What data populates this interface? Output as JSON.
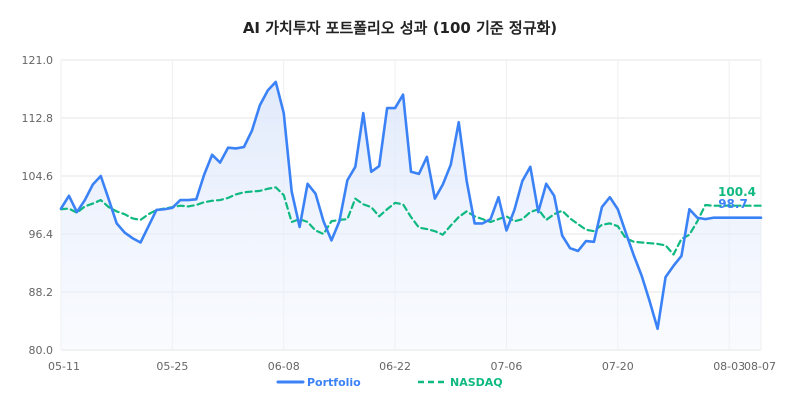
{
  "chart_data": {
    "type": "line",
    "title": "AI 가치투자 포트폴리오 성과 (100 기준 정규화)",
    "xlabel": "",
    "ylabel": "",
    "ylim": [
      80.0,
      121.0
    ],
    "yticks": [
      "80.0",
      "88.2",
      "96.4",
      "104.6",
      "112.8",
      "121.0"
    ],
    "xticks": [
      "05-11",
      "05-25",
      "06-08",
      "06-22",
      "07-06",
      "07-20",
      "08-03",
      "08-07"
    ],
    "x": [
      "05-11",
      "05-12",
      "05-13",
      "05-14",
      "05-15",
      "05-16",
      "05-17",
      "05-18",
      "05-19",
      "05-20",
      "05-21",
      "05-22",
      "05-23",
      "05-24",
      "05-25",
      "05-26",
      "05-27",
      "05-28",
      "05-29",
      "05-30",
      "05-31",
      "06-01",
      "06-02",
      "06-03",
      "06-04",
      "06-05",
      "06-06",
      "06-07",
      "06-08",
      "06-09",
      "06-10",
      "06-11",
      "06-12",
      "06-13",
      "06-14",
      "06-15",
      "06-16",
      "06-17",
      "06-18",
      "06-19",
      "06-20",
      "06-21",
      "06-22",
      "06-23",
      "06-24",
      "06-25",
      "06-26",
      "06-27",
      "06-28",
      "06-29",
      "06-30",
      "07-01",
      "07-02",
      "07-03",
      "07-04",
      "07-05",
      "07-06",
      "07-07",
      "07-08",
      "07-09",
      "07-10",
      "07-11",
      "07-12",
      "07-13",
      "07-14",
      "07-15",
      "07-16",
      "07-17",
      "07-18",
      "07-19",
      "07-20",
      "07-21",
      "07-22",
      "07-23",
      "07-24",
      "07-25",
      "07-26",
      "07-27",
      "07-28",
      "07-29",
      "07-30",
      "07-31",
      "08-01",
      "08-02",
      "08-03",
      "08-04",
      "08-05",
      "08-06",
      "08-07"
    ],
    "series": [
      {
        "name": "Portfolio",
        "color": "#3b82f6",
        "style": "solid",
        "end_label": "98.7",
        "values": [
          100.0,
          101.8,
          99.5,
          101.2,
          103.4,
          104.6,
          101.3,
          97.9,
          96.6,
          95.8,
          95.2,
          97.5,
          99.8,
          99.9,
          100.1,
          101.2,
          101.2,
          101.3,
          104.8,
          107.6,
          106.5,
          108.6,
          108.5,
          108.7,
          111.0,
          114.6,
          116.7,
          117.9,
          113.5,
          102.4,
          97.4,
          103.5,
          102.1,
          98.2,
          95.5,
          98.2,
          104.0,
          105.9,
          113.5,
          105.2,
          106.0,
          114.2,
          114.2,
          116.1,
          105.2,
          104.9,
          107.3,
          101.4,
          103.4,
          106.2,
          112.2,
          103.9,
          97.9,
          97.9,
          98.5,
          101.6,
          96.9,
          99.8,
          103.9,
          105.9,
          99.5,
          103.5,
          101.8,
          96.2,
          94.4,
          94.0,
          95.4,
          95.3,
          100.2,
          101.6,
          99.9,
          96.6,
          93.4,
          90.5,
          86.9,
          83.0,
          90.3,
          91.9,
          93.3,
          99.9,
          98.7,
          98.5,
          98.7,
          98.7,
          98.7,
          98.7,
          98.7,
          98.7,
          98.7
        ]
      },
      {
        "name": "NASDAQ",
        "color": "#10b981",
        "style": "dashed",
        "end_label": "100.4",
        "values": [
          99.9,
          100.0,
          99.4,
          100.3,
          100.7,
          101.2,
          100.2,
          99.6,
          99.2,
          98.6,
          98.4,
          99.2,
          99.8,
          100.0,
          100.2,
          100.4,
          100.3,
          100.5,
          100.9,
          101.1,
          101.2,
          101.5,
          102.0,
          102.3,
          102.4,
          102.5,
          102.8,
          103.0,
          101.9,
          98.1,
          98.5,
          98.1,
          96.9,
          96.4,
          98.2,
          98.4,
          98.5,
          101.4,
          100.6,
          100.2,
          98.9,
          99.9,
          100.8,
          100.6,
          98.8,
          97.3,
          97.1,
          96.8,
          96.3,
          97.6,
          98.8,
          99.6,
          98.9,
          98.5,
          98.1,
          98.5,
          98.9,
          98.2,
          98.5,
          99.5,
          99.9,
          98.4,
          99.2,
          99.7,
          98.6,
          97.8,
          97.0,
          96.8,
          97.7,
          97.9,
          97.5,
          95.8,
          95.3,
          95.2,
          95.1,
          95.0,
          94.8,
          93.5,
          95.7,
          96.3,
          98.2,
          100.5,
          100.4,
          100.4,
          100.4,
          100.4,
          100.4,
          100.4,
          100.4
        ]
      }
    ],
    "grid": true,
    "legend": "bottom"
  }
}
